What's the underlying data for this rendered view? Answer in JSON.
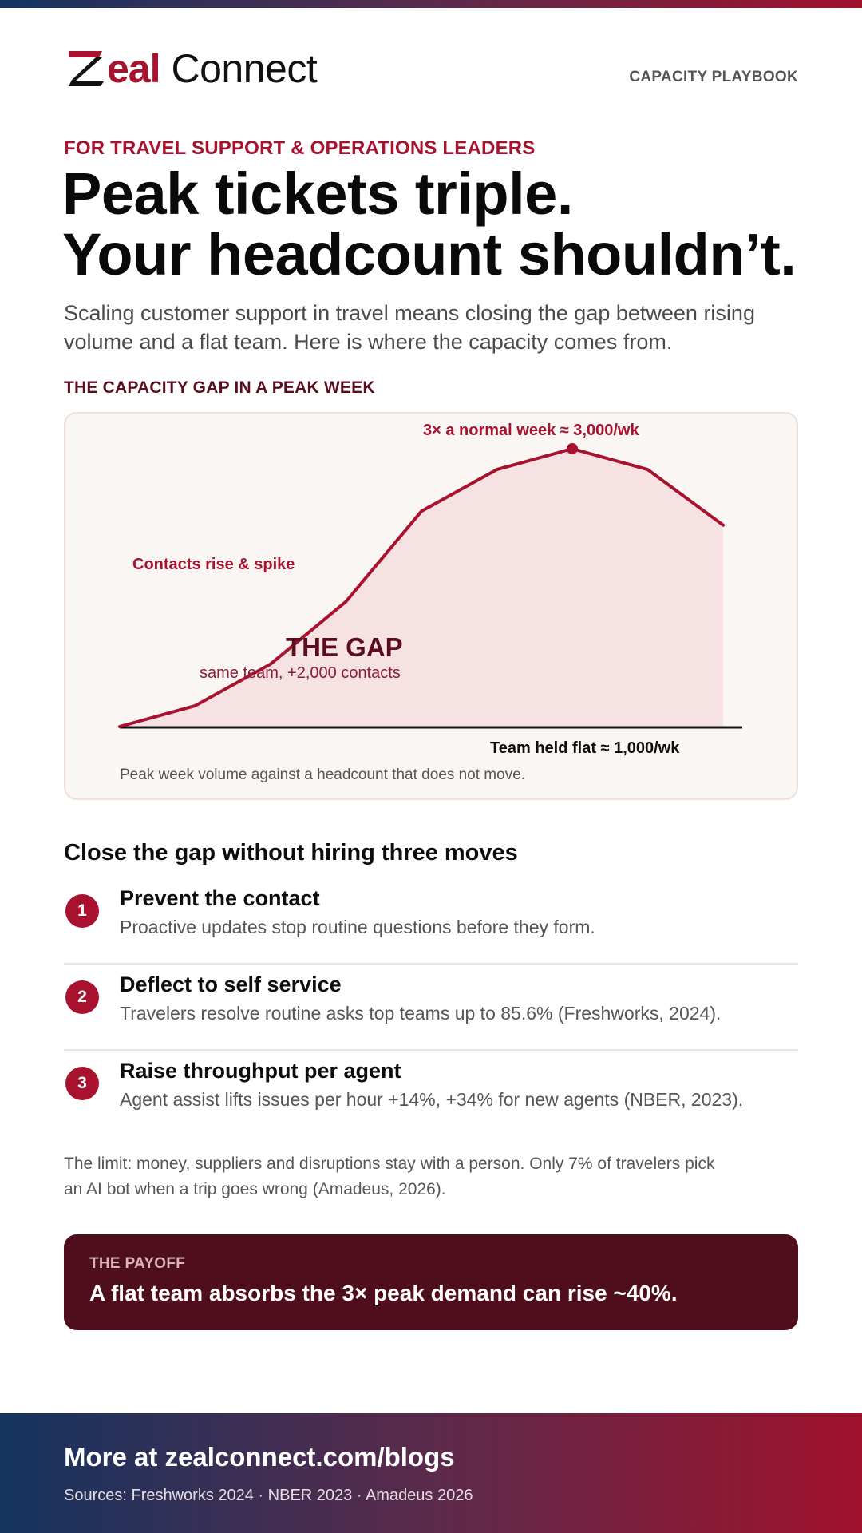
{
  "brand": {
    "logo_accent": "eal",
    "logo_word": "Connect",
    "header_tag": "CAPACITY PLAYBOOK"
  },
  "hero": {
    "eyebrow": "FOR TRAVEL SUPPORT & OPERATIONS LEADERS",
    "headline_line1": "Peak tickets triple.",
    "headline_line2": "Your headcount shouldn’t.",
    "intro": "Scaling customer support in travel means closing the gap between rising volume and a flat team. Here is where the capacity comes from."
  },
  "chart_section": {
    "label": "THE CAPACITY GAP IN A PEAK WEEK"
  },
  "chart_data": {
    "type": "area",
    "title": "",
    "series": [
      {
        "values": [
          1000,
          1150,
          1450,
          1900,
          2550,
          2850,
          3000,
          2850,
          2450
        ]
      }
    ],
    "baseline": 1000,
    "ylim": [
      1000,
      3000
    ],
    "annotations": {
      "peak": "3× a normal week ≈ 3,000/wk",
      "rise": "Contacts rise & spike",
      "gap_title": "THE GAP",
      "gap_sub": "same team, +2,000 contacts",
      "flat": "Team held flat ≈ 1,000/wk"
    },
    "caption": "Peak week volume against a headcount that does not move.",
    "colors": {
      "line": "#a8122f",
      "fill": "#f6e1e3",
      "baseline": "#111111"
    }
  },
  "moves": {
    "title": "Close the gap without hiring three moves",
    "items": [
      {
        "num": "1",
        "title": "Prevent the contact",
        "desc": "Proactive updates stop routine questions before they form."
      },
      {
        "num": "2",
        "title": "Deflect to self service",
        "desc": "Travelers resolve routine asks top teams up to 85.6% (Freshworks, 2024)."
      },
      {
        "num": "3",
        "title": "Raise throughput per agent",
        "desc": "Agent assist lifts issues per hour +14%, +34% for new agents (NBER, 2023)."
      }
    ]
  },
  "limit": "The limit: money, suppliers and disruptions stay with a person. Only 7% of travelers pick an AI bot when a trip goes wrong (Amadeus, 2026).",
  "payoff": {
    "label": "THE PAYOFF",
    "text": "A flat team absorbs the 3× peak demand can rise ~40%."
  },
  "footer": {
    "link": "More at zealconnect.com/blogs",
    "sources": "Sources: Freshworks 2024 · NBER 2023 · Amadeus 2026"
  },
  "colors": {
    "brand": "#a8122f",
    "dark_maroon": "#4f0e1b",
    "navy": "#14345f"
  }
}
